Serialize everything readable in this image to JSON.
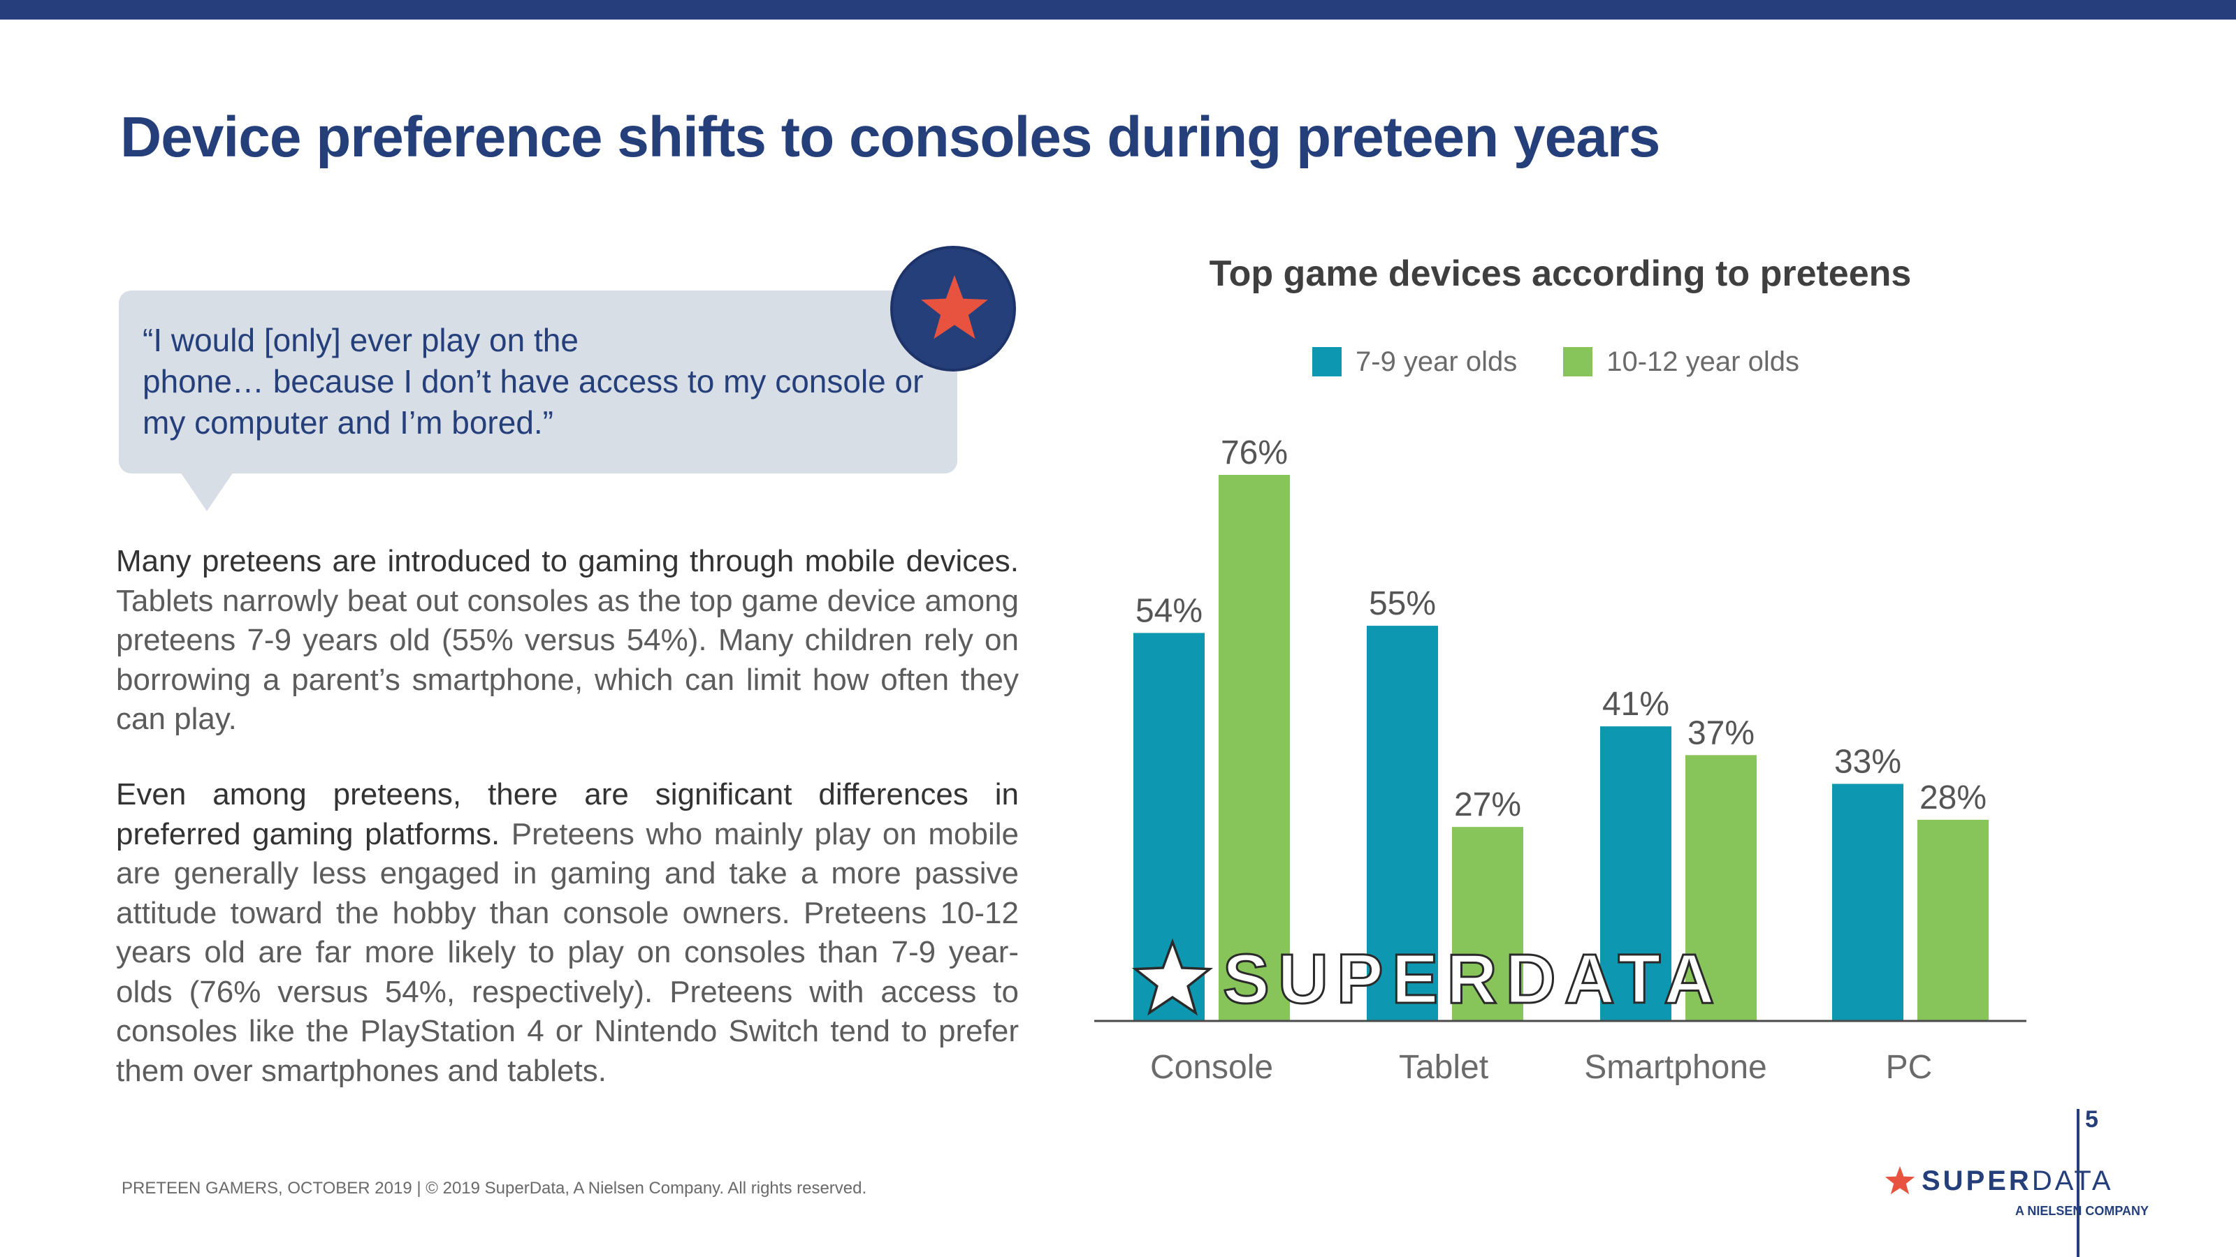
{
  "slide": {
    "title": "Device preference shifts to consoles during preteen years",
    "page_number": "5"
  },
  "quote": {
    "line1": "“I would [only] ever play on the",
    "line2": "phone… because I don’t have access to my console or",
    "line3": "my computer and I’m bored.”",
    "badge_icon": "star-icon"
  },
  "paragraphs": [
    {
      "lead": "Many preteens are introduced to gaming through mobile devices.",
      "body": " Tablets narrowly beat out consoles as the top game device among preteens 7-9 years old (55% versus 54%). Many children rely on borrowing a parent’s smartphone, which can limit how often they can play."
    },
    {
      "lead": "Even among preteens, there are significant differences in preferred gaming platforms.",
      "body": " Preteens who mainly play on mobile are generally less engaged in gaming and take a more passive attitude toward the hobby than console owners. Preteens 10-12 years old are far more likely to play on consoles than 7-9 year-olds (76% versus 54%, respectively). Preteens with access to consoles like the PlayStation 4 or Nintendo Switch tend to prefer them over smartphones and tablets."
    }
  ],
  "chart_data": {
    "type": "bar",
    "title": "Top game devices according to preteens",
    "categories": [
      "Console",
      "Tablet",
      "Smartphone",
      "PC"
    ],
    "series": [
      {
        "name": "7-9 year olds",
        "values": [
          54,
          55,
          41,
          33
        ],
        "color": "#0d97b0"
      },
      {
        "name": "10-12 year olds",
        "values": [
          76,
          27,
          37,
          28
        ],
        "color": "#87c45a"
      }
    ],
    "value_suffix": "%",
    "ylim": [
      0,
      76
    ],
    "legend_position": "top",
    "grid": false
  },
  "watermark": {
    "text": "SUPERDATA",
    "icon": "star-icon"
  },
  "footer": {
    "left_text": "PRETEEN GAMERS, OCTOBER 2019  |  © 2019 SuperData, A Nielsen Company. All rights reserved.",
    "logo_super": "SUPER",
    "logo_data": "DATA",
    "logo_sub": "A NIELSEN COMPANY",
    "logo_icon": "star-icon"
  },
  "colors": {
    "brand_navy": "#253f7b",
    "accent_red": "#e8533f",
    "series_teal": "#0d97b0",
    "series_green": "#87c45a"
  }
}
